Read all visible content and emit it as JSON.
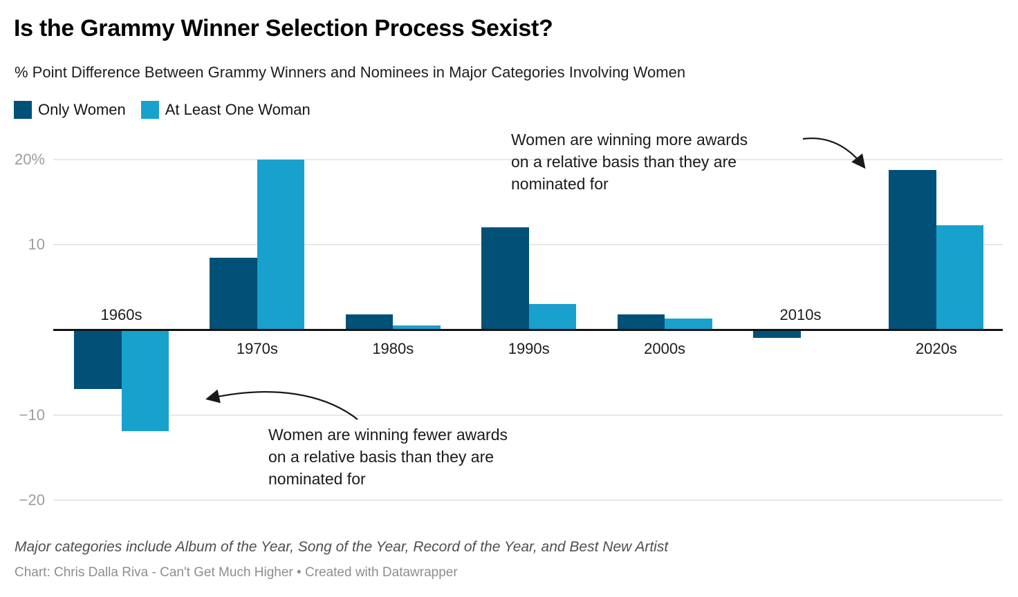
{
  "header": {
    "title": "Is the Grammy Winner Selection Process Sexist?",
    "subtitle": "% Point Difference Between Grammy Winners and Nominees in Major Categories Involving Women"
  },
  "legend": {
    "items": [
      {
        "label": "Only Women",
        "color": "#015078"
      },
      {
        "label": "At Least One Woman",
        "color": "#18a1cd"
      }
    ]
  },
  "chart_data": {
    "type": "bar",
    "categories": [
      "1960s",
      "1970s",
      "1980s",
      "1990s",
      "2000s",
      "2010s",
      "2020s"
    ],
    "series": [
      {
        "name": "Only Women",
        "color": "#015078",
        "values": [
          -6.9,
          8.5,
          1.8,
          12,
          1.8,
          -0.9,
          18.8
        ]
      },
      {
        "name": "At Least One Woman",
        "color": "#18a1cd",
        "values": [
          -11.9,
          20,
          0.5,
          3,
          1.3,
          0,
          12.3
        ]
      }
    ],
    "ylabel": "% point difference",
    "ylim": [
      -20,
      22
    ],
    "yticks": [
      {
        "value": 20,
        "label": "20%"
      },
      {
        "value": 10,
        "label": "10"
      },
      {
        "value": -10,
        "label": "−10"
      },
      {
        "value": -20,
        "label": "−20"
      }
    ],
    "grid": "horizontal",
    "legend_position": "top-left",
    "baseline_color": "#141414"
  },
  "annotations": {
    "positive": {
      "text": "Women are winning more awards\non a relative basis than they are\nnominated for"
    },
    "negative": {
      "text": "Women are winning fewer awards\non a relative basis than they are\nnominated for"
    }
  },
  "footer": {
    "note": "Major categories include Album of the Year, Song of the Year, Record of the Year, and Best New Artist",
    "attribution": "Chart: Chris Dalla Riva - Can't Get Much Higher • Created with Datawrapper"
  }
}
